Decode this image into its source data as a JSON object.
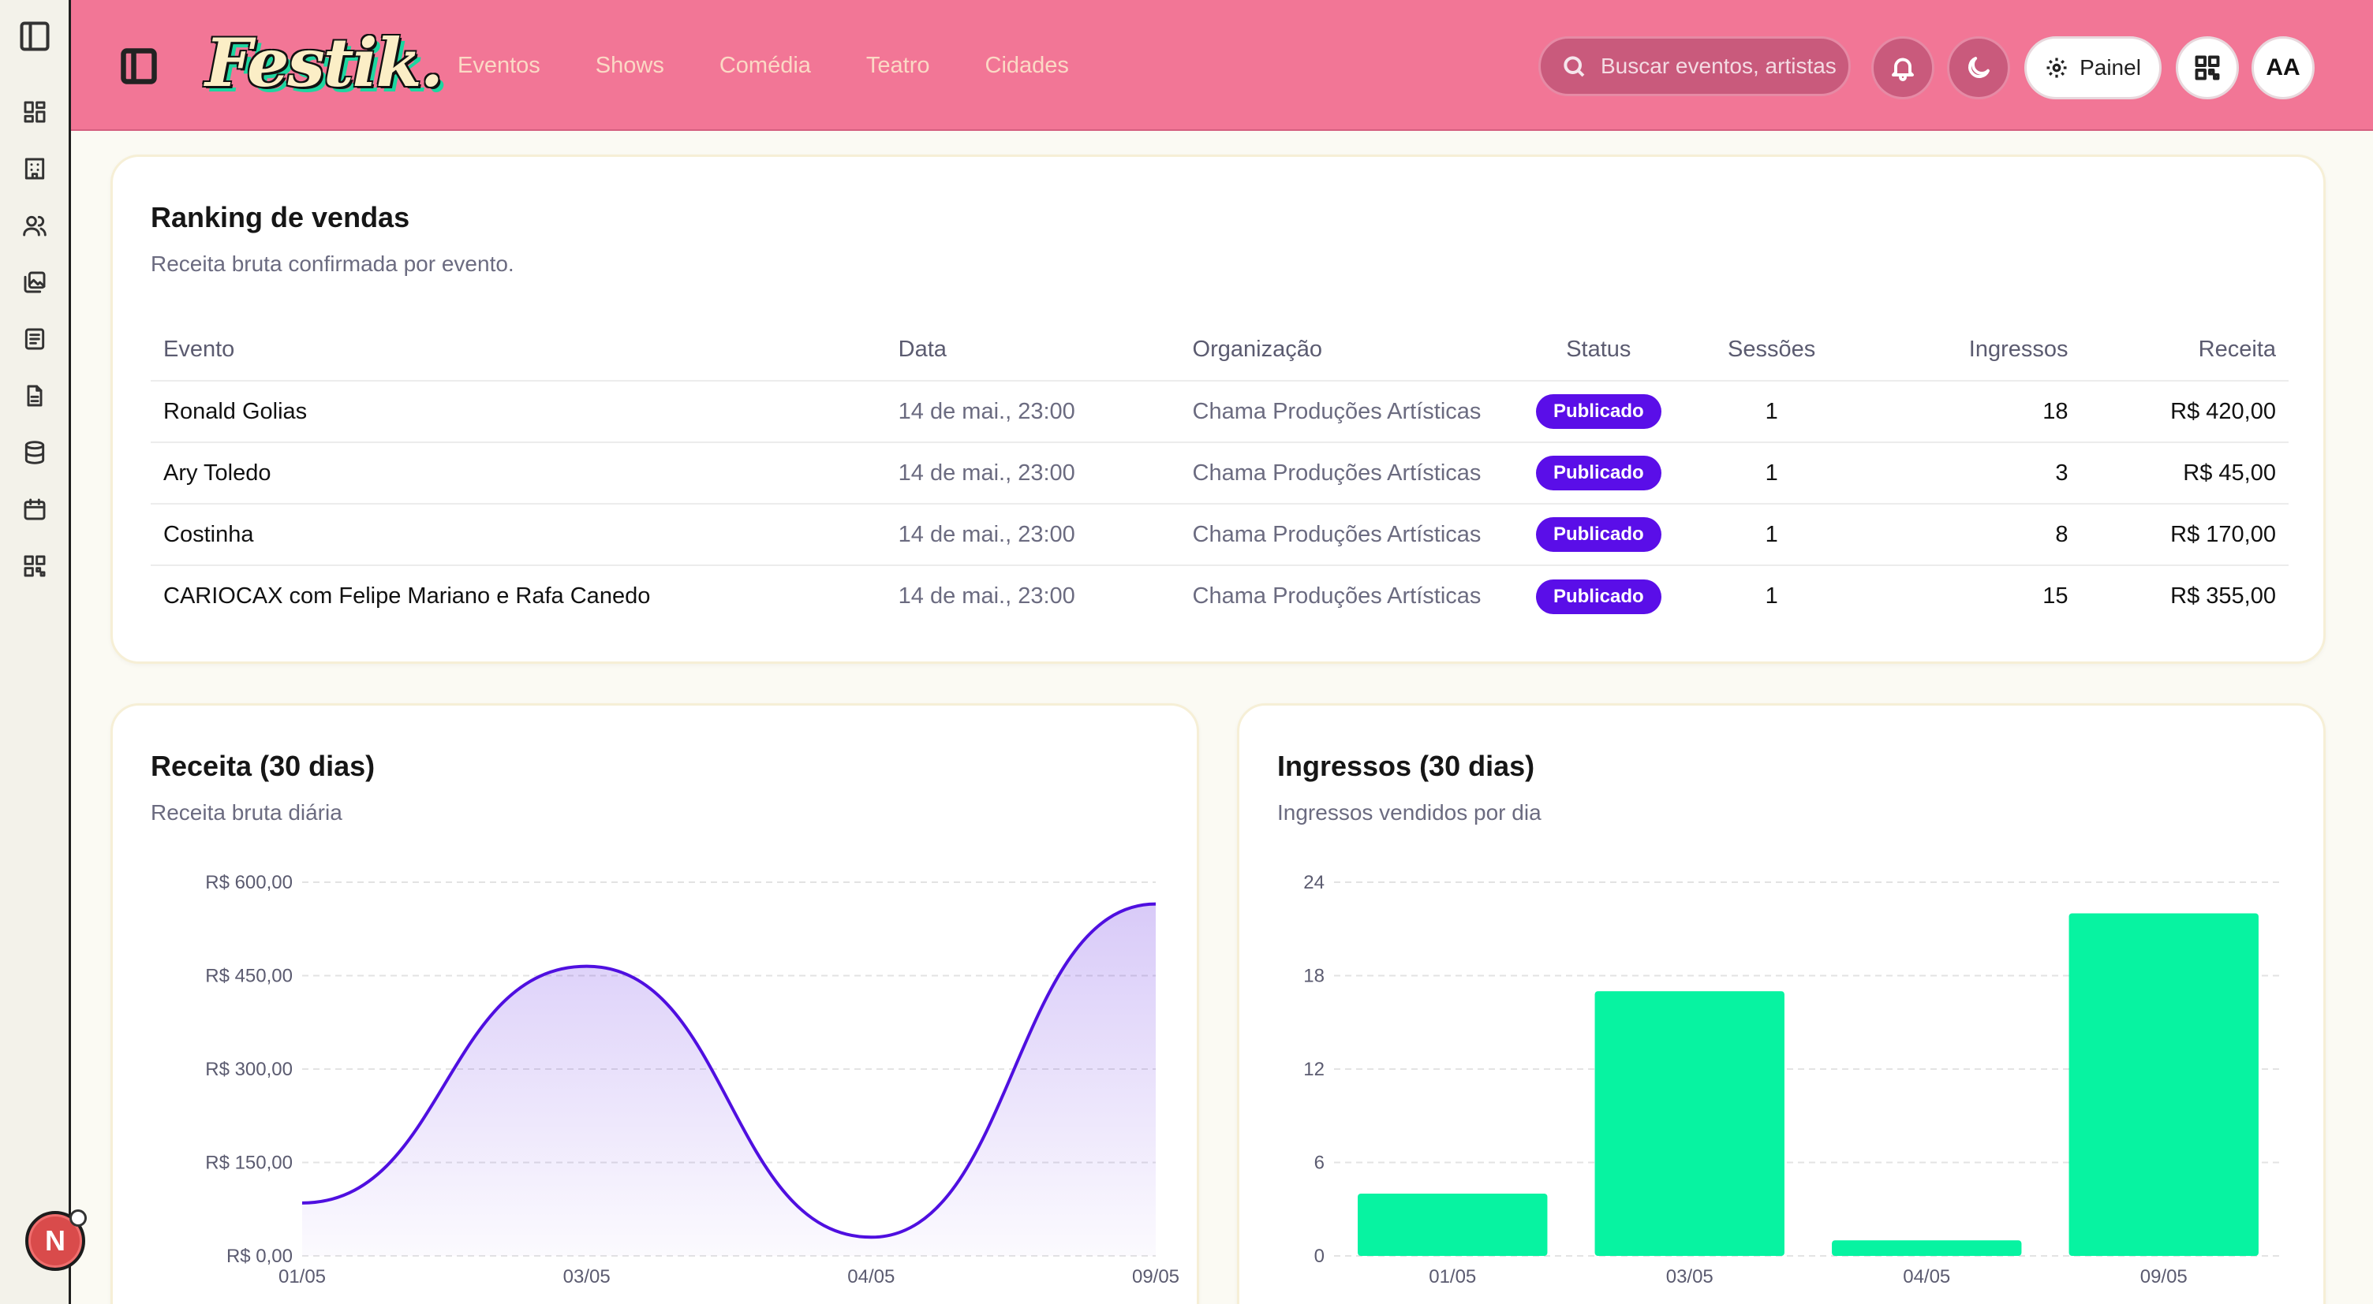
{
  "nav": {
    "logo": "Festik.",
    "links": [
      "Eventos",
      "Shows",
      "Comédia",
      "Teatro",
      "Cidades"
    ],
    "search_placeholder": "Buscar eventos, artistas,",
    "painel_label": "Painel",
    "avatar_initials": "AA"
  },
  "sidebar": {
    "icons": [
      "dashboard-icon",
      "building-icon",
      "users-icon",
      "gallery-icon",
      "list-icon",
      "document-icon",
      "database-icon",
      "calendar-icon",
      "qr-code-icon"
    ],
    "badge": "N"
  },
  "ranking": {
    "title": "Ranking de vendas",
    "subtitle": "Receita bruta confirmada por evento.",
    "columns": [
      "Evento",
      "Data",
      "Organização",
      "Status",
      "Sessões",
      "Ingressos",
      "Receita"
    ],
    "rows": [
      {
        "evento": "Ronald Golias",
        "data": "14 de mai., 23:00",
        "org": "Chama Produções Artísticas",
        "status": "Publicado",
        "sessoes": "1",
        "ingressos": "18",
        "receita": "R$ 420,00"
      },
      {
        "evento": "Ary Toledo",
        "data": "14 de mai., 23:00",
        "org": "Chama Produções Artísticas",
        "status": "Publicado",
        "sessoes": "1",
        "ingressos": "3",
        "receita": "R$ 45,00"
      },
      {
        "evento": "Costinha",
        "data": "14 de mai., 23:00",
        "org": "Chama Produções Artísticas",
        "status": "Publicado",
        "sessoes": "1",
        "ingressos": "8",
        "receita": "R$ 170,00"
      },
      {
        "evento": "CARIOCAX com Felipe Mariano e Rafa Canedo",
        "data": "14 de mai., 23:00",
        "org": "Chama Produções Artísticas",
        "status": "Publicado",
        "sessoes": "1",
        "ingressos": "15",
        "receita": "R$ 355,00"
      }
    ]
  },
  "revenue_card": {
    "title": "Receita (30 dias)",
    "subtitle": "Receita bruta diária"
  },
  "tickets_card": {
    "title": "Ingressos (30 dias)",
    "subtitle": "Ingressos vendidos por dia"
  },
  "chart_data": [
    {
      "type": "area",
      "categories": [
        "01/05",
        "03/05",
        "04/05",
        "09/05"
      ],
      "series": [
        {
          "values": [
            85,
            465,
            30,
            565
          ]
        }
      ],
      "yticks": [
        "R$ 0,00",
        "R$ 150,00",
        "R$ 300,00",
        "R$ 450,00",
        "R$ 600,00"
      ],
      "ylim": [
        0,
        600
      ],
      "color": "#4f0fe0",
      "grid": true
    },
    {
      "type": "bar",
      "categories": [
        "01/05",
        "03/05",
        "04/05",
        "09/05"
      ],
      "series": [
        {
          "values": [
            4,
            17,
            1,
            22
          ]
        }
      ],
      "yticks": [
        "0",
        "6",
        "12",
        "18",
        "24"
      ],
      "ylim": [
        0,
        24
      ],
      "color": "#07f3a1",
      "grid": true
    }
  ]
}
